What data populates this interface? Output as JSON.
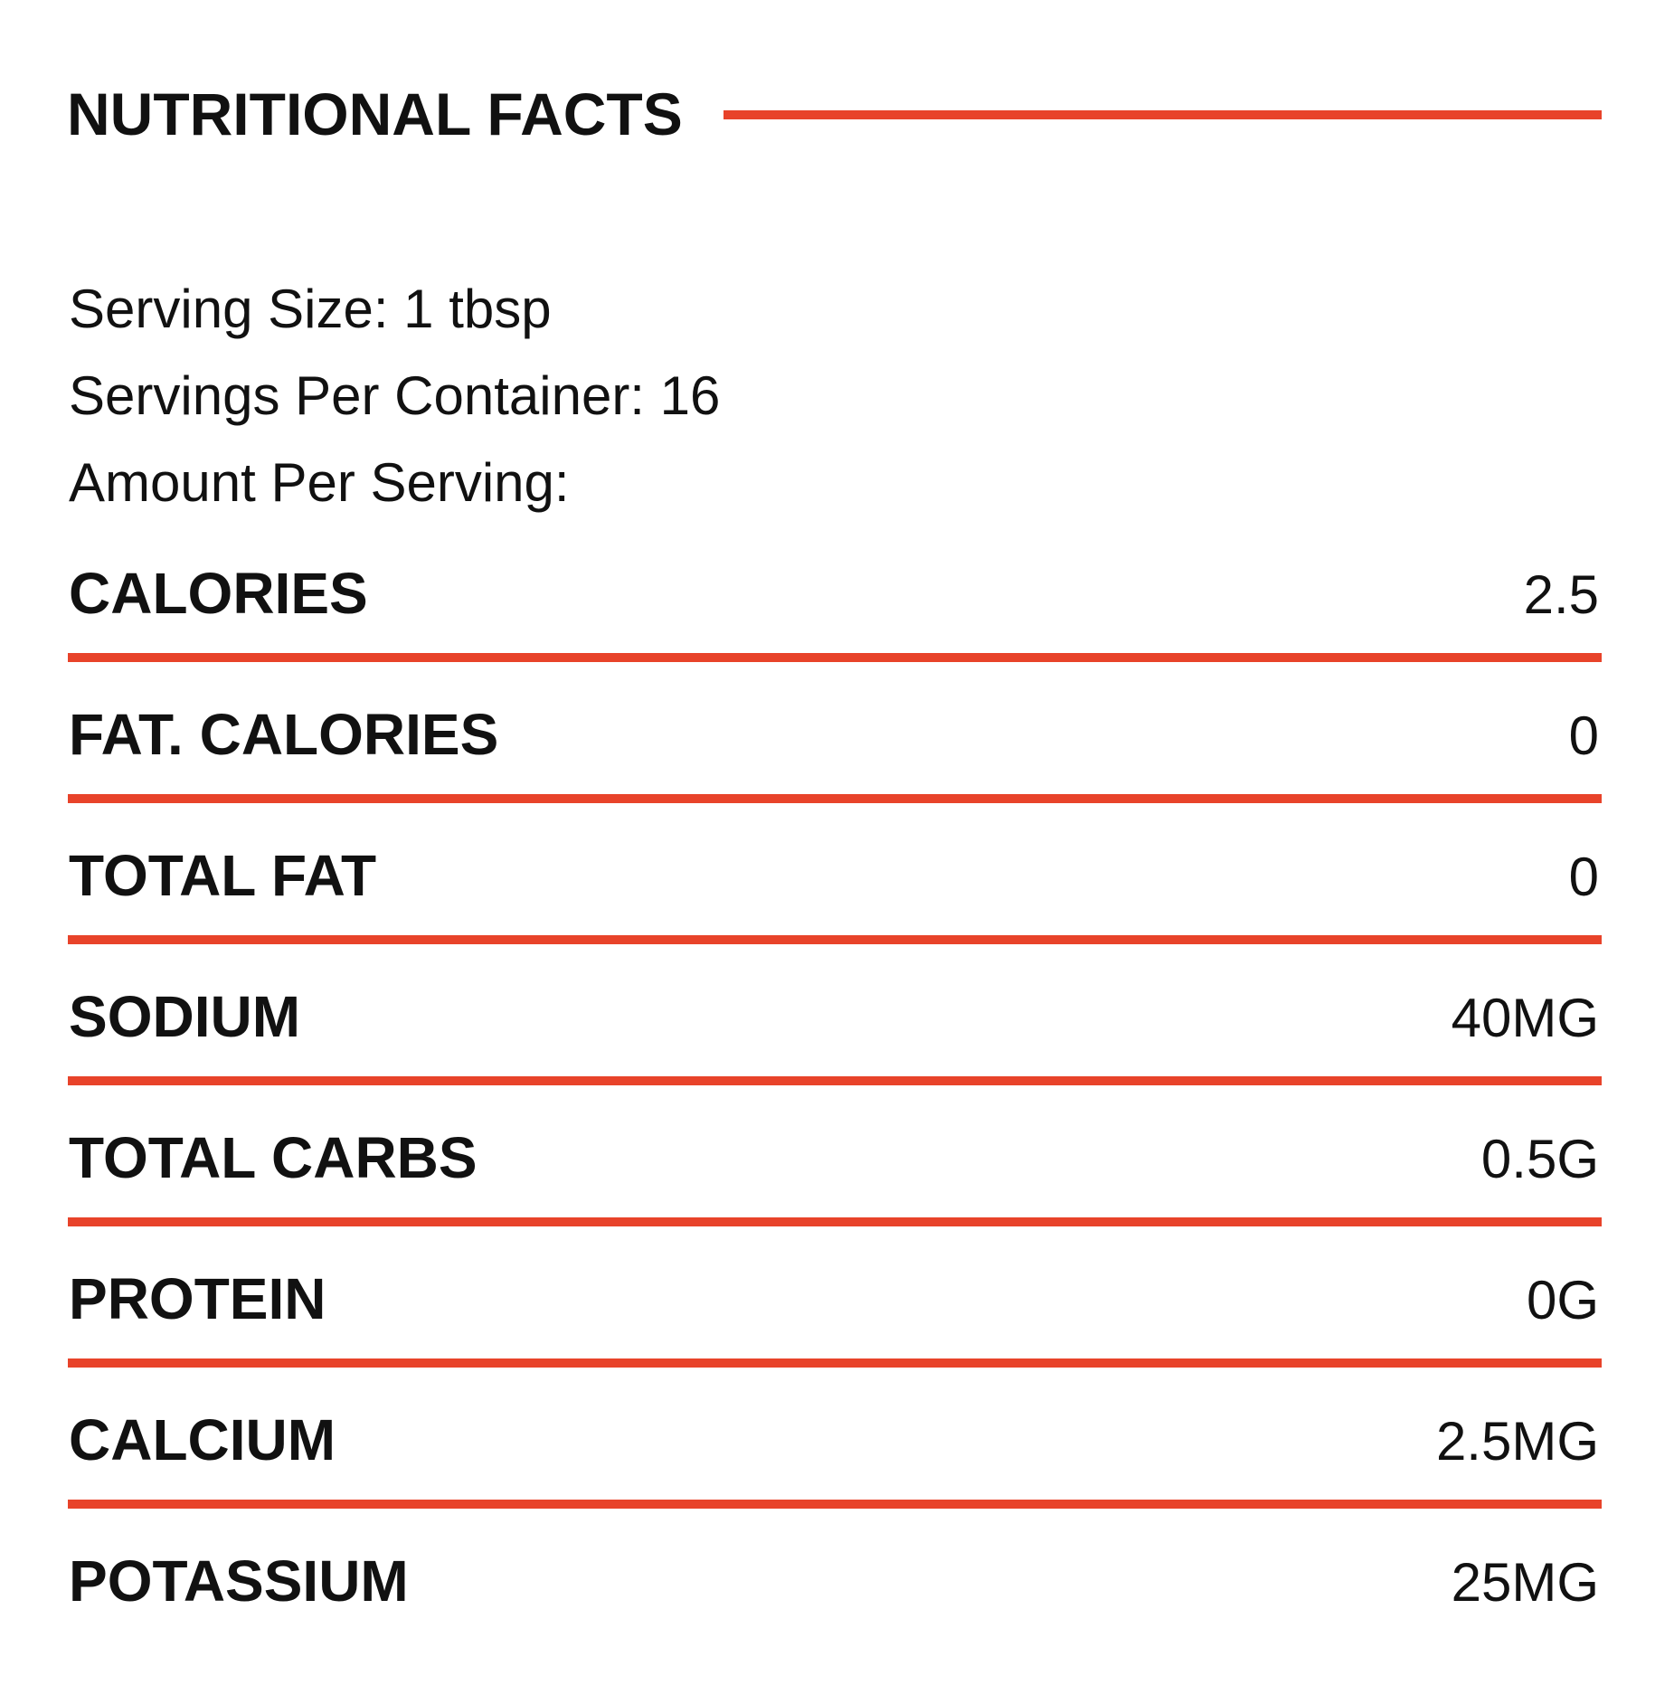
{
  "header": {
    "title": "NUTRITIONAL FACTS"
  },
  "serving_info": [
    "Serving Size: 1 tbsp",
    "Servings Per Container: 16",
    "Amount Per Serving:"
  ],
  "rows": [
    {
      "label": "CALORIES",
      "value": "2.5"
    },
    {
      "label": "FAT. CALORIES",
      "value": "0"
    },
    {
      "label": "TOTAL FAT",
      "value": "0"
    },
    {
      "label": "SODIUM",
      "value": "40MG"
    },
    {
      "label": "TOTAL CARBS",
      "value": "0.5G"
    },
    {
      "label": "PROTEIN",
      "value": "0G"
    },
    {
      "label": "CALCIUM",
      "value": "2.5MG"
    },
    {
      "label": "POTASSIUM",
      "value": "25MG"
    }
  ]
}
